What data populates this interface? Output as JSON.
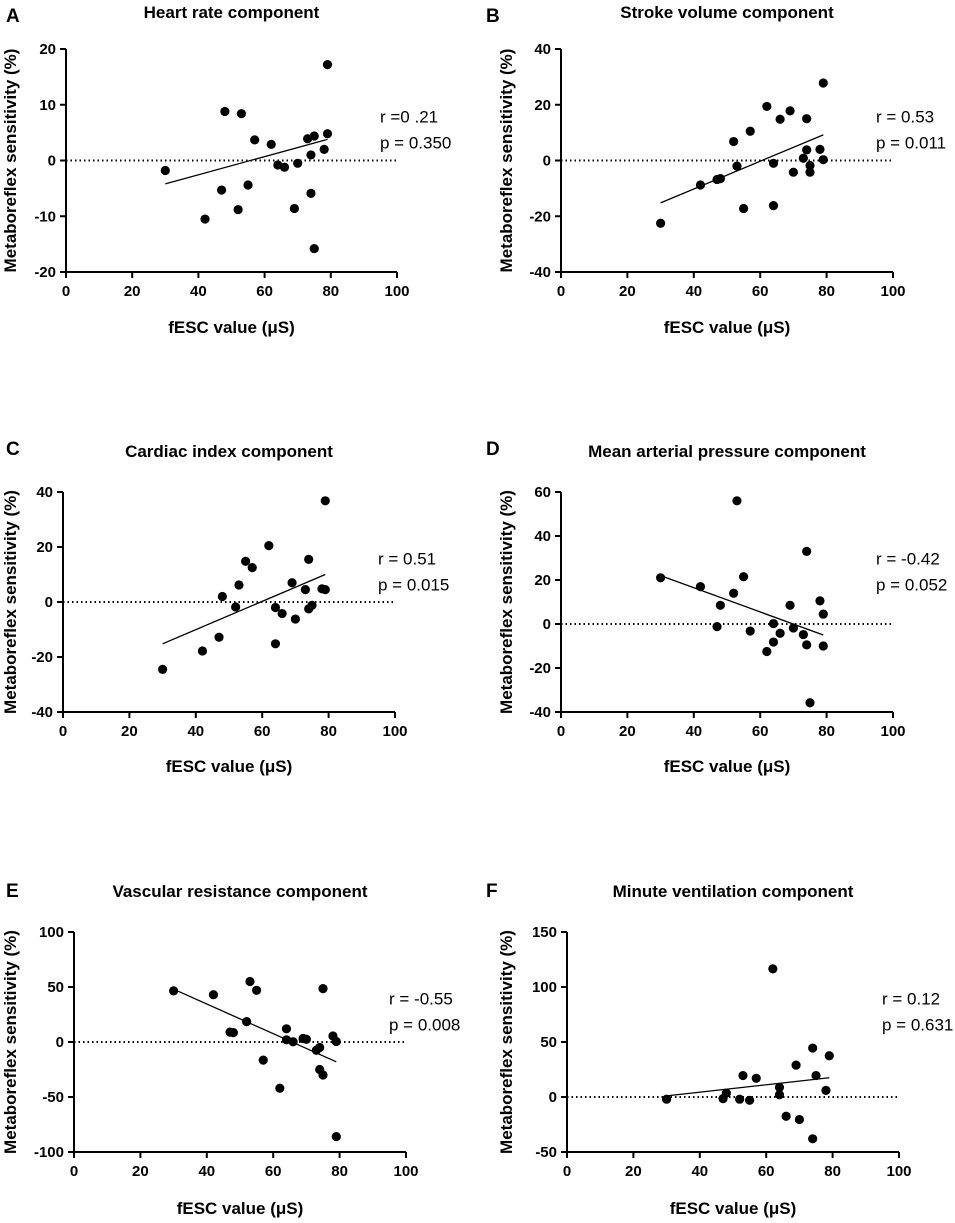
{
  "figure": {
    "x_axis_label": "fESC value (μS)",
    "y_axis_label": "Metaboreflex sensitivity (%)"
  },
  "chart_data": [
    {
      "letter": "A",
      "type": "scatter",
      "title": "Heart rate component",
      "xlabel": "fESC value (μS)",
      "ylabel": "Metaboreflex sensitivity (%)",
      "xlim": [
        0,
        100
      ],
      "ylim": [
        -20,
        20
      ],
      "xticks": [
        0,
        20,
        40,
        60,
        80,
        100
      ],
      "yticks": [
        -20,
        -10,
        0,
        10,
        20
      ],
      "r_text": "r =0 .21",
      "p_text": "p = 0.350",
      "trendline": [
        [
          30,
          -4.2
        ],
        [
          79,
          3.8
        ]
      ],
      "zero_line": true,
      "points": [
        [
          30,
          -1.8
        ],
        [
          42,
          -10.5
        ],
        [
          47,
          -5.3
        ],
        [
          48,
          8.8
        ],
        [
          52,
          -8.8
        ],
        [
          53,
          8.4
        ],
        [
          55,
          -4.4
        ],
        [
          57,
          3.7
        ],
        [
          62,
          2.9
        ],
        [
          64,
          -0.8
        ],
        [
          66,
          -1.2
        ],
        [
          69,
          -8.6
        ],
        [
          70,
          -0.5
        ],
        [
          73,
          3.9
        ],
        [
          74,
          -5.9
        ],
        [
          74,
          1.0
        ],
        [
          75,
          4.4
        ],
        [
          75,
          -15.8
        ],
        [
          78,
          2.0
        ],
        [
          79,
          4.8
        ],
        [
          79,
          17.2
        ]
      ]
    },
    {
      "letter": "B",
      "type": "scatter",
      "title": "Stroke volume component",
      "xlabel": "fESC value (μS)",
      "ylabel": "Metaboreflex sensitivity (%)",
      "xlim": [
        0,
        100
      ],
      "ylim": [
        -40,
        40
      ],
      "xticks": [
        0,
        20,
        40,
        60,
        80,
        100
      ],
      "yticks": [
        -40,
        -20,
        0,
        20,
        40
      ],
      "r_text": "r = 0.53",
      "p_text": "p = 0.011",
      "trendline": [
        [
          30,
          -15.2
        ],
        [
          79,
          9.2
        ]
      ],
      "zero_line": true,
      "points": [
        [
          30,
          -22.5
        ],
        [
          42,
          -8.8
        ],
        [
          47,
          -6.8
        ],
        [
          48,
          -6.5
        ],
        [
          52,
          6.8
        ],
        [
          53,
          -2.0
        ],
        [
          55,
          -17.2
        ],
        [
          57,
          10.5
        ],
        [
          62,
          19.4
        ],
        [
          64,
          -1.0
        ],
        [
          64,
          -16.2
        ],
        [
          66,
          14.8
        ],
        [
          69,
          17.8
        ],
        [
          70,
          -4.2
        ],
        [
          73,
          0.8
        ],
        [
          74,
          15.0
        ],
        [
          74,
          3.8
        ],
        [
          75,
          -4.2
        ],
        [
          75,
          -1.8
        ],
        [
          78,
          4.0
        ],
        [
          79,
          0.3
        ],
        [
          79,
          27.8
        ]
      ]
    },
    {
      "letter": "C",
      "type": "scatter",
      "title": "Cardiac index component",
      "xlabel": "fESC value (μS)",
      "ylabel": "Metaboreflex sensitivity (%)",
      "xlim": [
        0,
        100
      ],
      "ylim": [
        -40,
        40
      ],
      "xticks": [
        0,
        20,
        40,
        60,
        80,
        100
      ],
      "yticks": [
        -40,
        -20,
        0,
        20,
        40
      ],
      "r_text": "r = 0.51",
      "p_text": "p = 0.015",
      "trendline": [
        [
          30,
          -15.2
        ],
        [
          79,
          10.0
        ]
      ],
      "zero_line": true,
      "points": [
        [
          30,
          -24.5
        ],
        [
          42,
          -17.8
        ],
        [
          47,
          -12.8
        ],
        [
          48,
          2.0
        ],
        [
          52,
          -1.8
        ],
        [
          53,
          6.2
        ],
        [
          55,
          14.8
        ],
        [
          57,
          12.5
        ],
        [
          62,
          20.5
        ],
        [
          64,
          -2.0
        ],
        [
          64,
          -15.2
        ],
        [
          66,
          -4.2
        ],
        [
          69,
          7.0
        ],
        [
          70,
          -6.2
        ],
        [
          73,
          4.5
        ],
        [
          74,
          15.5
        ],
        [
          74,
          -2.5
        ],
        [
          75,
          -1.2
        ],
        [
          78,
          4.8
        ],
        [
          79,
          4.5
        ],
        [
          79,
          36.8
        ]
      ]
    },
    {
      "letter": "D",
      "type": "scatter",
      "title": "Mean arterial pressure component",
      "xlabel": "fESC value (μS)",
      "ylabel": "Metaboreflex sensitivity (%)",
      "xlim": [
        0,
        100
      ],
      "ylim": [
        -40,
        60
      ],
      "xticks": [
        0,
        20,
        40,
        60,
        80,
        100
      ],
      "yticks": [
        -40,
        -20,
        0,
        20,
        40,
        60
      ],
      "r_text": "r = -0.42",
      "p_text": "p = 0.052",
      "trendline": [
        [
          30,
          22.0
        ],
        [
          79,
          -5.0
        ]
      ],
      "zero_line": true,
      "points": [
        [
          30,
          21.0
        ],
        [
          42,
          17.0
        ],
        [
          47,
          -1.2
        ],
        [
          48,
          8.5
        ],
        [
          52,
          14.0
        ],
        [
          53,
          56.0
        ],
        [
          55,
          21.5
        ],
        [
          57,
          -3.2
        ],
        [
          62,
          -12.5
        ],
        [
          64,
          0.2
        ],
        [
          64,
          -8.2
        ],
        [
          66,
          -4.2
        ],
        [
          69,
          8.5
        ],
        [
          70,
          -1.8
        ],
        [
          73,
          -4.8
        ],
        [
          74,
          -9.5
        ],
        [
          74,
          33.0
        ],
        [
          75,
          -35.8
        ],
        [
          78,
          10.5
        ],
        [
          79,
          4.5
        ],
        [
          79,
          -10.0
        ]
      ]
    },
    {
      "letter": "E",
      "type": "scatter",
      "title": "Vascular resistance component",
      "xlabel": "fESC value (μS)",
      "ylabel": "Metaboreflex sensitivity (%)",
      "xlim": [
        0,
        100
      ],
      "ylim": [
        -100,
        100
      ],
      "xticks": [
        0,
        20,
        40,
        60,
        80,
        100
      ],
      "yticks": [
        -100,
        -50,
        0,
        50,
        100
      ],
      "r_text": "r = -0.55",
      "p_text": "p = 0.008",
      "trendline": [
        [
          30,
          48.0
        ],
        [
          79,
          -18.0
        ]
      ],
      "zero_line": true,
      "points": [
        [
          30,
          46.5
        ],
        [
          42,
          43.0
        ],
        [
          47,
          9.0
        ],
        [
          48,
          8.5
        ],
        [
          52,
          18.5
        ],
        [
          53,
          55.0
        ],
        [
          55,
          47.0
        ],
        [
          57,
          -16.5
        ],
        [
          62,
          -42.0
        ],
        [
          64,
          12.0
        ],
        [
          64,
          2.0
        ],
        [
          66,
          0.2
        ],
        [
          69,
          3.2
        ],
        [
          70,
          2.5
        ],
        [
          73,
          -7.5
        ],
        [
          74,
          -5.0
        ],
        [
          74,
          -25.0
        ],
        [
          75,
          -30.0
        ],
        [
          75,
          48.5
        ],
        [
          78,
          5.5
        ],
        [
          79,
          0.5
        ],
        [
          79,
          -86.0
        ]
      ]
    },
    {
      "letter": "F",
      "type": "scatter",
      "title": "Minute ventilation component",
      "xlabel": "fESC value (μS)",
      "ylabel": "Metaboreflex sensitivity (%)",
      "xlim": [
        0,
        100
      ],
      "ylim": [
        -50,
        150
      ],
      "xticks": [
        0,
        20,
        40,
        60,
        80,
        100
      ],
      "yticks": [
        -50,
        0,
        50,
        100,
        150
      ],
      "r_text": "r = 0.12",
      "p_text": "p = 0.631",
      "trendline": [
        [
          30,
          1.0
        ],
        [
          79,
          17.5
        ]
      ],
      "zero_line": true,
      "points": [
        [
          30,
          -2.0
        ],
        [
          47,
          -1.5
        ],
        [
          48,
          3.5
        ],
        [
          52,
          -2.0
        ],
        [
          53,
          19.5
        ],
        [
          55,
          -3.0
        ],
        [
          57,
          17.0
        ],
        [
          62,
          116.5
        ],
        [
          64,
          2.0
        ],
        [
          64,
          8.8
        ],
        [
          66,
          -17.5
        ],
        [
          69,
          29.0
        ],
        [
          70,
          -20.5
        ],
        [
          74,
          44.5
        ],
        [
          74,
          -38.0
        ],
        [
          75,
          19.5
        ],
        [
          78,
          6.0
        ],
        [
          79,
          37.5
        ]
      ]
    }
  ]
}
